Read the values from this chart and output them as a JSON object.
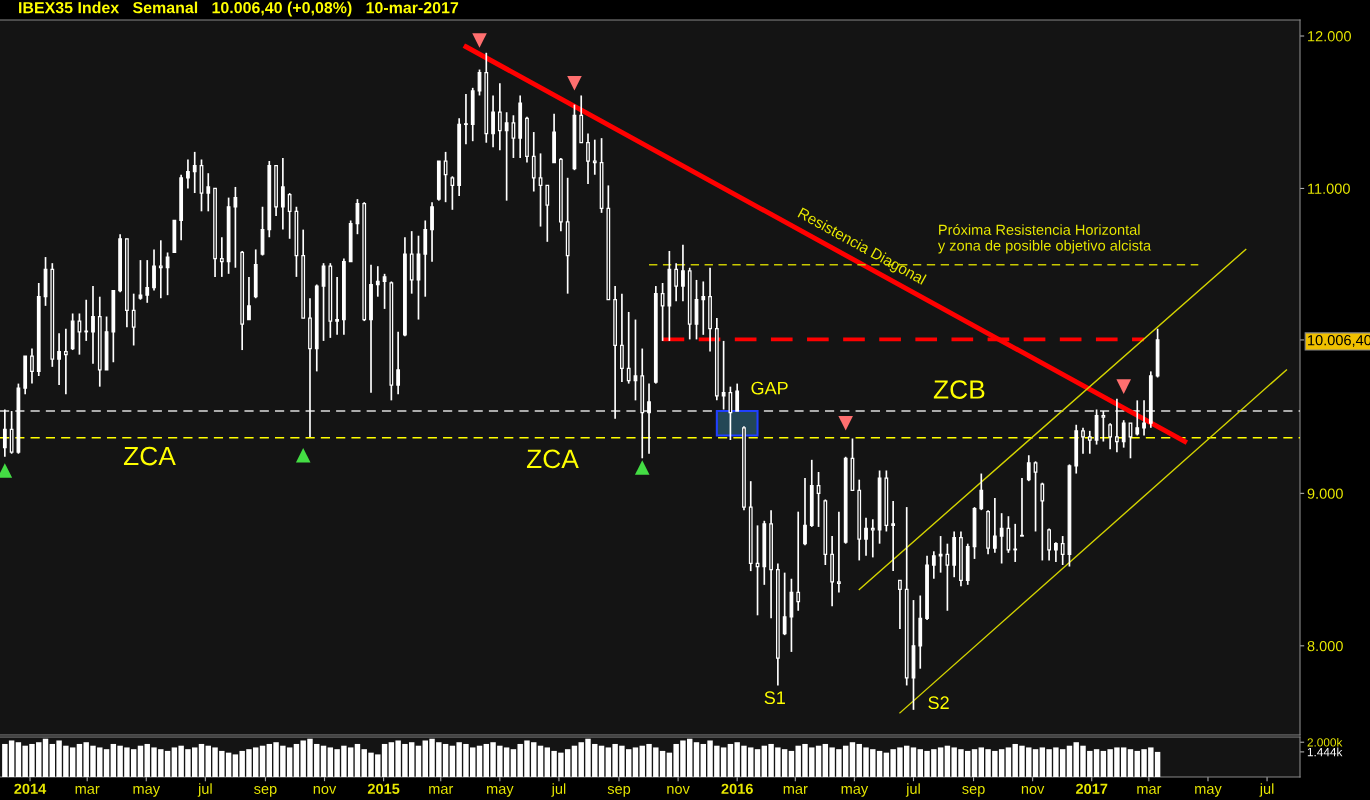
{
  "chart_data": [
    {
      "type": "candlestick",
      "title": "IBEX35 Index   Semanal   10.006,40 (+0,08%)   10-mar-2017",
      "color": "#ffffff",
      "x": [
        "2013-12-06",
        "2013-12-13",
        "2013-12-20",
        "2013-12-27",
        "2014-01-03",
        "2014-01-10",
        "2014-01-17",
        "2014-01-24",
        "2014-01-31",
        "2014-02-07",
        "2014-02-14",
        "2014-02-21",
        "2014-02-28",
        "2014-03-07",
        "2014-03-14",
        "2014-03-21",
        "2014-03-28",
        "2014-04-04",
        "2014-04-11",
        "2014-04-18",
        "2014-04-25",
        "2014-05-02",
        "2014-05-09",
        "2014-05-16",
        "2014-05-23",
        "2014-05-30",
        "2014-06-06",
        "2014-06-13",
        "2014-06-20",
        "2014-06-27",
        "2014-07-04",
        "2014-07-11",
        "2014-07-18",
        "2014-07-25",
        "2014-08-01",
        "2014-08-08",
        "2014-08-15",
        "2014-08-22",
        "2014-08-29",
        "2014-09-05",
        "2014-09-12",
        "2014-09-19",
        "2014-09-26",
        "2014-10-03",
        "2014-10-10",
        "2014-10-17",
        "2014-10-24",
        "2014-10-31",
        "2014-11-07",
        "2014-11-14",
        "2014-11-21",
        "2014-11-28",
        "2014-12-05",
        "2014-12-12",
        "2014-12-19",
        "2014-12-26",
        "2015-01-02",
        "2015-01-09",
        "2015-01-16",
        "2015-01-23",
        "2015-01-30",
        "2015-02-06",
        "2015-02-13",
        "2015-02-20",
        "2015-02-27",
        "2015-03-06",
        "2015-03-13",
        "2015-03-20",
        "2015-03-27",
        "2015-04-03",
        "2015-04-10",
        "2015-04-17",
        "2015-04-24",
        "2015-05-01",
        "2015-05-08",
        "2015-05-15",
        "2015-05-22",
        "2015-05-29",
        "2015-06-05",
        "2015-06-12",
        "2015-06-19",
        "2015-06-26",
        "2015-07-03",
        "2015-07-10",
        "2015-07-17",
        "2015-07-24",
        "2015-07-31",
        "2015-08-07",
        "2015-08-14",
        "2015-08-21",
        "2015-08-28",
        "2015-09-04",
        "2015-09-11",
        "2015-09-18",
        "2015-09-25",
        "2015-10-02",
        "2015-10-09",
        "2015-10-16",
        "2015-10-23",
        "2015-10-30",
        "2015-11-06",
        "2015-11-13",
        "2015-11-20",
        "2015-11-27",
        "2015-12-04",
        "2015-12-11",
        "2015-12-18",
        "2015-12-25",
        "2016-01-01",
        "2016-01-08",
        "2016-01-15",
        "2016-01-22",
        "2016-01-29",
        "2016-02-05",
        "2016-02-12",
        "2016-02-19",
        "2016-02-26",
        "2016-03-04",
        "2016-03-11",
        "2016-03-18",
        "2016-03-25",
        "2016-04-01",
        "2016-04-08",
        "2016-04-15",
        "2016-04-22",
        "2016-04-29",
        "2016-05-06",
        "2016-05-13",
        "2016-05-20",
        "2016-05-27",
        "2016-06-03",
        "2016-06-10",
        "2016-06-17",
        "2016-06-24",
        "2016-07-01",
        "2016-07-08",
        "2016-07-15",
        "2016-07-22",
        "2016-07-29",
        "2016-08-05",
        "2016-08-12",
        "2016-08-19",
        "2016-08-26",
        "2016-09-02",
        "2016-09-09",
        "2016-09-16",
        "2016-09-23",
        "2016-09-30",
        "2016-10-07",
        "2016-10-14",
        "2016-10-21",
        "2016-10-28",
        "2016-11-04",
        "2016-11-11",
        "2016-11-18",
        "2016-11-25",
        "2016-12-02",
        "2016-12-09",
        "2016-12-16",
        "2016-12-23",
        "2016-12-30",
        "2017-01-06",
        "2017-01-13",
        "2017-01-20",
        "2017-01-27",
        "2017-02-03",
        "2017-02-10",
        "2017-02-17",
        "2017-02-24",
        "2017-03-03",
        "2017-03-10"
      ],
      "ohlc": [
        [
          9300,
          9550,
          9240,
          9420
        ],
        [
          9420,
          9540,
          9260,
          9270
        ],
        [
          9270,
          9720,
          9260,
          9690
        ],
        [
          9690,
          9900,
          9650,
          9900
        ],
        [
          9900,
          9950,
          9720,
          9800
        ],
        [
          9800,
          10380,
          9770,
          10290
        ],
        [
          10290,
          10550,
          10230,
          10470
        ],
        [
          10470,
          10510,
          9830,
          9880
        ],
        [
          9880,
          10050,
          9710,
          9930
        ],
        [
          9930,
          10080,
          9650,
          9910
        ],
        [
          9950,
          10180,
          9940,
          10130
        ],
        [
          10130,
          10180,
          9910,
          10060
        ],
        [
          10060,
          10270,
          10000,
          10060
        ],
        [
          10060,
          10360,
          9850,
          10160
        ],
        [
          10160,
          10290,
          9700,
          9810
        ],
        [
          9810,
          10160,
          9810,
          10060
        ],
        [
          10060,
          10330,
          9860,
          10330
        ],
        [
          10330,
          10700,
          10320,
          10670
        ],
        [
          10670,
          10670,
          10090,
          10200
        ],
        [
          10200,
          10310,
          9970,
          10090
        ],
        [
          10280,
          10530,
          10270,
          10300
        ],
        [
          10300,
          10530,
          10250,
          10350
        ],
        [
          10350,
          10600,
          10330,
          10490
        ],
        [
          10490,
          10660,
          10280,
          10480
        ],
        [
          10480,
          10580,
          10300,
          10550
        ],
        [
          10580,
          10790,
          10580,
          10790
        ],
        [
          10790,
          11090,
          10660,
          11070
        ],
        [
          11070,
          11190,
          11000,
          11110
        ],
        [
          11110,
          11240,
          10970,
          11150
        ],
        [
          11150,
          11190,
          10850,
          10970
        ],
        [
          10970,
          11100,
          10850,
          11010
        ],
        [
          11000,
          11000,
          10420,
          10540
        ],
        [
          10540,
          10680,
          10420,
          10520
        ],
        [
          10520,
          10940,
          10440,
          10880
        ],
        [
          10880,
          11010,
          10480,
          10940
        ],
        [
          10580,
          10590,
          9940,
          10110
        ],
        [
          10140,
          10420,
          10140,
          10230
        ],
        [
          10290,
          10600,
          10280,
          10500
        ],
        [
          10570,
          10880,
          10560,
          10730
        ],
        [
          10730,
          11180,
          10680,
          11150
        ],
        [
          11150,
          11150,
          10820,
          10880
        ],
        [
          10880,
          11200,
          10730,
          11010
        ],
        [
          10960,
          10970,
          10670,
          10850
        ],
        [
          10850,
          10880,
          10420,
          10560
        ],
        [
          10560,
          10730,
          10150,
          10150
        ],
        [
          10150,
          10280,
          9370,
          9950
        ],
        [
          9950,
          10370,
          9800,
          10360
        ],
        [
          10360,
          10510,
          10000,
          10490
        ],
        [
          10490,
          10510,
          10020,
          10130
        ],
        [
          10130,
          10420,
          10040,
          10140
        ],
        [
          10140,
          10540,
          10040,
          10520
        ],
        [
          10520,
          10790,
          10520,
          10770
        ],
        [
          10770,
          10930,
          10700,
          10900
        ],
        [
          10900,
          10910,
          10130,
          10140
        ],
        [
          10140,
          10500,
          9660,
          10370
        ],
        [
          10370,
          10490,
          10290,
          10390
        ],
        [
          10390,
          10440,
          10210,
          10420
        ],
        [
          10380,
          10390,
          9610,
          9710
        ],
        [
          9710,
          10060,
          9650,
          9810
        ],
        [
          10040,
          10680,
          10030,
          10570
        ],
        [
          10570,
          10720,
          10310,
          10400
        ],
        [
          10400,
          10690,
          10140,
          10570
        ],
        [
          10570,
          10790,
          10290,
          10730
        ],
        [
          10730,
          10910,
          10520,
          10880
        ],
        [
          10930,
          11180,
          10920,
          11180
        ],
        [
          11180,
          11240,
          10910,
          11090
        ],
        [
          11070,
          11080,
          10860,
          11020
        ],
        [
          11020,
          11460,
          10950,
          11420
        ],
        [
          11420,
          11620,
          11290,
          11420
        ],
        [
          11420,
          11660,
          11310,
          11640
        ],
        [
          11640,
          11780,
          11610,
          11760
        ],
        [
          11760,
          11890,
          11300,
          11360
        ],
        [
          11360,
          11610,
          11270,
          11500
        ],
        [
          11500,
          11690,
          11250,
          11380
        ],
        [
          11380,
          11500,
          10920,
          11430
        ],
        [
          11430,
          11480,
          11200,
          11330
        ],
        [
          11330,
          11610,
          11200,
          11560
        ],
        [
          11460,
          11470,
          11170,
          11210
        ],
        [
          11210,
          11370,
          10980,
          11070
        ],
        [
          11070,
          11230,
          10750,
          11020
        ],
        [
          11020,
          11020,
          10650,
          10890
        ],
        [
          11170,
          11490,
          11170,
          11370
        ],
        [
          11190,
          11200,
          10720,
          10780
        ],
        [
          10780,
          11070,
          10310,
          10560
        ],
        [
          11130,
          11550,
          11120,
          11480
        ],
        [
          11480,
          11610,
          11300,
          11300
        ],
        [
          11300,
          11360,
          11030,
          11180
        ],
        [
          11180,
          11320,
          11090,
          11170
        ],
        [
          11170,
          11330,
          10840,
          10870
        ],
        [
          10870,
          11020,
          10270,
          10270
        ],
        [
          10270,
          10360,
          9490,
          9970
        ],
        [
          9970,
          10310,
          9730,
          9820
        ],
        [
          9820,
          10190,
          9720,
          9740
        ],
        [
          9740,
          10140,
          9610,
          9770
        ],
        [
          9770,
          9950,
          9230,
          9530
        ],
        [
          9530,
          9720,
          9260,
          9600
        ],
        [
          9730,
          10360,
          9720,
          10310
        ],
        [
          10310,
          10380,
          10000,
          10230
        ],
        [
          10230,
          10590,
          10000,
          10470
        ],
        [
          10470,
          10510,
          10260,
          10360
        ],
        [
          10360,
          10630,
          10260,
          10460
        ],
        [
          10460,
          10480,
          10010,
          10110
        ],
        [
          10110,
          10400,
          10010,
          10270
        ],
        [
          10270,
          10390,
          10040,
          10290
        ],
        [
          10290,
          10480,
          9930,
          10080
        ],
        [
          10080,
          10150,
          9610,
          9640
        ],
        [
          9640,
          10000,
          9550,
          9660
        ],
        [
          9660,
          9700,
          9350,
          9530
        ],
        [
          9540,
          9720,
          9540,
          9670
        ],
        [
          9430,
          9440,
          8890,
          8910
        ],
        [
          8910,
          9080,
          8490,
          8540
        ],
        [
          8540,
          8790,
          8200,
          8520
        ],
        [
          8520,
          8820,
          8400,
          8800
        ],
        [
          8800,
          8890,
          8180,
          8500
        ],
        [
          8500,
          8540,
          7740,
          7920
        ],
        [
          8080,
          8480,
          8070,
          8190
        ],
        [
          8190,
          8440,
          7960,
          8350
        ],
        [
          8350,
          8880,
          8230,
          8290
        ],
        [
          8670,
          9100,
          8660,
          8790
        ],
        [
          8790,
          9220,
          8780,
          9050
        ],
        [
          9050,
          9140,
          8780,
          9000
        ],
        [
          8950,
          8960,
          8530,
          8600
        ],
        [
          8600,
          8720,
          8260,
          8420
        ],
        [
          8420,
          8880,
          8350,
          8410
        ],
        [
          8680,
          9240,
          8670,
          9230
        ],
        [
          9230,
          9360,
          9020,
          9020
        ],
        [
          9020,
          9090,
          8560,
          8700
        ],
        [
          8700,
          8840,
          8590,
          8770
        ],
        [
          8770,
          8830,
          8580,
          8760
        ],
        [
          8760,
          9150,
          8670,
          9100
        ],
        [
          9100,
          9150,
          8750,
          8790
        ],
        [
          8790,
          8950,
          8490,
          8800
        ],
        [
          8430,
          8430,
          8110,
          8370
        ],
        [
          8370,
          8910,
          7740,
          7790
        ],
        [
          7790,
          8300,
          7580,
          8000
        ],
        [
          8000,
          8330,
          7850,
          8180
        ],
        [
          8180,
          8590,
          8170,
          8530
        ],
        [
          8530,
          8620,
          8440,
          8590
        ],
        [
          8590,
          8720,
          8480,
          8600
        ],
        [
          8600,
          8670,
          8230,
          8530
        ],
        [
          8530,
          8750,
          8450,
          8710
        ],
        [
          8710,
          8750,
          8390,
          8430
        ],
        [
          8430,
          8670,
          8400,
          8650
        ],
        [
          8650,
          8910,
          8570,
          8900
        ],
        [
          8900,
          9130,
          8890,
          9020
        ],
        [
          8880,
          8890,
          8600,
          8640
        ],
        [
          8640,
          8970,
          8610,
          8720
        ],
        [
          8720,
          8870,
          8540,
          8770
        ],
        [
          8770,
          8850,
          8610,
          8630
        ],
        [
          8630,
          8800,
          8550,
          8630
        ],
        [
          8720,
          9100,
          8720,
          8720
        ],
        [
          9090,
          9250,
          9080,
          9200
        ],
        [
          9200,
          9210,
          8750,
          9140
        ],
        [
          9060,
          9070,
          8560,
          8950
        ],
        [
          8760,
          8770,
          8560,
          8630
        ],
        [
          8630,
          8680,
          8550,
          8670
        ],
        [
          8670,
          8720,
          8530,
          8600
        ],
        [
          8600,
          9190,
          8520,
          9180
        ],
        [
          9180,
          9450,
          9130,
          9410
        ],
        [
          9410,
          9430,
          9260,
          9370
        ],
        [
          9370,
          9410,
          9260,
          9350
        ],
        [
          9350,
          9550,
          9320,
          9510
        ],
        [
          9510,
          9540,
          9340,
          9500
        ],
        [
          9450,
          9460,
          9290,
          9370
        ],
        [
          9370,
          9620,
          9270,
          9340
        ],
        [
          9340,
          9480,
          9300,
          9460
        ],
        [
          9460,
          9460,
          9230,
          9370
        ],
        [
          9390,
          9610,
          9380,
          9430
        ],
        [
          9430,
          9610,
          9380,
          9460
        ],
        [
          9460,
          9800,
          9430,
          9770
        ],
        [
          9770,
          10080,
          9760,
          10006.4
        ]
      ],
      "series": [
        {
          "type": "line",
          "name": "Resistencia Diagonal",
          "x": [
            "2015-03-27",
            "2017-04-07"
          ],
          "values": [
            11930,
            9340
          ],
          "color": "#ff0000",
          "line_style": "solid"
        },
        {
          "type": "line",
          "x": [
            "2015-10-16",
            "2017-02-24"
          ],
          "values": [
            10010,
            10010
          ],
          "color": "#ff0000",
          "line_style": "dashed"
        },
        {
          "type": "line",
          "name": "Próxima Resistencia Horizontal\ny zona de posible objetivo alcista",
          "x": [
            "2015-10-02",
            "2017-04-21"
          ],
          "values": [
            10500,
            10500
          ],
          "color": "#c8c800",
          "line_style": "dashed"
        },
        {
          "type": "line",
          "x": [
            "2016-05-06",
            "2017-06-09"
          ],
          "values": [
            8370,
            10600
          ],
          "color": "#d4d400",
          "line_style": "solid"
        },
        {
          "type": "line",
          "x": [
            "2016-06-17",
            "2017-07-21"
          ],
          "values": [
            7560,
            9810
          ],
          "color": "#d4d400",
          "line_style": "solid"
        },
        {
          "type": "bar",
          "x": [
            "2016-01-01"
          ],
          "base": [
            9380
          ],
          "values": [
            160
          ],
          "color": "#234756"
        },
        {
          "type": "scatter",
          "x": [
            "2013-12-06",
            "2014-10-10",
            "2015-09-25"
          ],
          "values": [
            9150,
            9250,
            9170
          ],
          "color": "#44dd44",
          "marker": "triangle"
        },
        {
          "type": "scatter",
          "x": [
            "2015-04-10",
            "2015-07-17",
            "2016-04-22",
            "2017-02-03"
          ],
          "values": [
            11970,
            11690,
            9460,
            9700
          ],
          "color": "#ff6f6f",
          "marker": "triangle_down"
        }
      ],
      "ref_lines": [
        {
          "axis": "y",
          "value": 9540,
          "color": "#dddddd",
          "line_style": "dashed"
        },
        {
          "axis": "y",
          "value": 9365,
          "color": "#ffff00",
          "line_style": "dashed"
        }
      ],
      "annotations": [
        "ZCA",
        "ZCA",
        "GAP",
        "ZCB",
        "S1",
        "S2"
      ],
      "xlim": [
        "2013-12-01",
        "2017-08-04"
      ],
      "ylim": [
        7415,
        12105
      ],
      "yticks": [
        {
          "value": 8000,
          "label": "8.000"
        },
        {
          "value": 9000,
          "label": "9.000"
        },
        {
          "value": 10006.4,
          "label": "10.006,40"
        },
        {
          "value": 11000,
          "label": "11.000"
        },
        {
          "value": 12000,
          "label": "12.000"
        }
      ],
      "tick_labels": "y",
      "grid": false,
      "legend": false
    },
    {
      "type": "bar",
      "color": "#ffffff",
      "x": [
        "2013-12-06",
        "2013-12-13",
        "2013-12-20",
        "2013-12-27",
        "2014-01-03",
        "2014-01-10",
        "2014-01-17",
        "2014-01-24",
        "2014-01-31",
        "2014-02-07",
        "2014-02-14",
        "2014-02-21",
        "2014-02-28",
        "2014-03-07",
        "2014-03-14",
        "2014-03-21",
        "2014-03-28",
        "2014-04-04",
        "2014-04-11",
        "2014-04-18",
        "2014-04-25",
        "2014-05-02",
        "2014-05-09",
        "2014-05-16",
        "2014-05-23",
        "2014-05-30",
        "2014-06-06",
        "2014-06-13",
        "2014-06-20",
        "2014-06-27",
        "2014-07-04",
        "2014-07-11",
        "2014-07-18",
        "2014-07-25",
        "2014-08-01",
        "2014-08-08",
        "2014-08-15",
        "2014-08-22",
        "2014-08-29",
        "2014-09-05",
        "2014-09-12",
        "2014-09-19",
        "2014-09-26",
        "2014-10-03",
        "2014-10-10",
        "2014-10-17",
        "2014-10-24",
        "2014-10-31",
        "2014-11-07",
        "2014-11-14",
        "2014-11-21",
        "2014-11-28",
        "2014-12-05",
        "2014-12-12",
        "2014-12-19",
        "2014-12-26",
        "2015-01-02",
        "2015-01-09",
        "2015-01-16",
        "2015-01-23",
        "2015-01-30",
        "2015-02-06",
        "2015-02-13",
        "2015-02-20",
        "2015-02-27",
        "2015-03-06",
        "2015-03-13",
        "2015-03-20",
        "2015-03-27",
        "2015-04-03",
        "2015-04-10",
        "2015-04-17",
        "2015-04-24",
        "2015-05-01",
        "2015-05-08",
        "2015-05-15",
        "2015-05-22",
        "2015-05-29",
        "2015-06-05",
        "2015-06-12",
        "2015-06-19",
        "2015-06-26",
        "2015-07-03",
        "2015-07-10",
        "2015-07-17",
        "2015-07-24",
        "2015-07-31",
        "2015-08-07",
        "2015-08-14",
        "2015-08-21",
        "2015-08-28",
        "2015-09-04",
        "2015-09-11",
        "2015-09-18",
        "2015-09-25",
        "2015-10-02",
        "2015-10-09",
        "2015-10-16",
        "2015-10-23",
        "2015-10-30",
        "2015-11-06",
        "2015-11-13",
        "2015-11-20",
        "2015-11-27",
        "2015-12-04",
        "2015-12-11",
        "2015-12-18",
        "2015-12-25",
        "2016-01-01",
        "2016-01-08",
        "2016-01-15",
        "2016-01-22",
        "2016-01-29",
        "2016-02-05",
        "2016-02-12",
        "2016-02-19",
        "2016-02-26",
        "2016-03-04",
        "2016-03-11",
        "2016-03-18",
        "2016-03-25",
        "2016-04-01",
        "2016-04-08",
        "2016-04-15",
        "2016-04-22",
        "2016-04-29",
        "2016-05-06",
        "2016-05-13",
        "2016-05-20",
        "2016-05-27",
        "2016-06-03",
        "2016-06-10",
        "2016-06-17",
        "2016-06-24",
        "2016-07-01",
        "2016-07-08",
        "2016-07-15",
        "2016-07-22",
        "2016-07-29",
        "2016-08-05",
        "2016-08-12",
        "2016-08-19",
        "2016-08-26",
        "2016-09-02",
        "2016-09-09",
        "2016-09-16",
        "2016-09-23",
        "2016-09-30",
        "2016-10-07",
        "2016-10-14",
        "2016-10-21",
        "2016-10-28",
        "2016-11-04",
        "2016-11-11",
        "2016-11-18",
        "2016-11-25",
        "2016-12-02",
        "2016-12-09",
        "2016-12-16",
        "2016-12-23",
        "2016-12-30",
        "2017-01-06",
        "2017-01-13",
        "2017-01-20",
        "2017-01-27",
        "2017-02-03",
        "2017-02-10",
        "2017-02-17",
        "2017-02-24",
        "2017-03-03",
        "2017-03-10"
      ],
      "values": [
        1900,
        2100,
        2000,
        1800,
        1900,
        2000,
        2200,
        1900,
        2100,
        1800,
        1700,
        1900,
        2000,
        1800,
        1700,
        1600,
        1900,
        1800,
        1700,
        1600,
        1800,
        1900,
        1700,
        1600,
        1500,
        1700,
        1800,
        1600,
        1700,
        1900,
        1800,
        1700,
        1500,
        1400,
        1300,
        1500,
        1600,
        1700,
        1800,
        1900,
        2000,
        1800,
        1700,
        1900,
        2100,
        2200,
        1900,
        1800,
        1700,
        1600,
        1800,
        1700,
        1900,
        1600,
        1400,
        1300,
        1900,
        2000,
        2100,
        1900,
        2000,
        1800,
        2100,
        2200,
        2000,
        1900,
        1800,
        2000,
        1900,
        1700,
        1800,
        1900,
        2000,
        1800,
        1700,
        1600,
        1900,
        2100,
        2000,
        1800,
        1700,
        1500,
        1400,
        1600,
        1800,
        2000,
        2200,
        1900,
        1800,
        1700,
        1900,
        1800,
        1600,
        1700,
        1800,
        1900,
        1700,
        1500,
        1400,
        1900,
        2100,
        2200,
        2000,
        1900,
        2100,
        1800,
        1700,
        1900,
        2000,
        1800,
        1700,
        1600,
        1800,
        1900,
        1700,
        1600,
        1500,
        1800,
        1900,
        1700,
        1800,
        1900,
        1700,
        1600,
        1800,
        2000,
        1900,
        1700,
        1600,
        1500,
        1400,
        1600,
        1700,
        1800,
        1700,
        1600,
        1500,
        1600,
        1700,
        1800,
        1700,
        1600,
        1500,
        1600,
        1700,
        1600,
        1500,
        1600,
        1700,
        1900,
        1800,
        1700,
        1600,
        1700,
        1600,
        1700,
        1600,
        1800,
        2000,
        1800,
        1500,
        1600,
        1500,
        1600,
        1700,
        1700,
        1600,
        1500,
        1600,
        1700,
        1444
      ],
      "xlim": [
        "2013-12-01",
        "2017-08-04"
      ],
      "xticks": [
        {
          "value": "2014-01-01",
          "label": "2014"
        },
        {
          "value": "2014-03-01",
          "label": "mar"
        },
        {
          "value": "2014-05-01",
          "label": "may"
        },
        {
          "value": "2014-07-01",
          "label": "jul"
        },
        {
          "value": "2014-09-01",
          "label": "sep"
        },
        {
          "value": "2014-11-01",
          "label": "nov"
        },
        {
          "value": "2015-01-01",
          "label": "2015"
        },
        {
          "value": "2015-03-01",
          "label": "mar"
        },
        {
          "value": "2015-05-01",
          "label": "may"
        },
        {
          "value": "2015-07-01",
          "label": "jul"
        },
        {
          "value": "2015-09-01",
          "label": "sep"
        },
        {
          "value": "2015-11-01",
          "label": "nov"
        },
        {
          "value": "2016-01-01",
          "label": "2016"
        },
        {
          "value": "2016-03-01",
          "label": "mar"
        },
        {
          "value": "2016-05-01",
          "label": "may"
        },
        {
          "value": "2016-07-01",
          "label": "jul"
        },
        {
          "value": "2016-09-01",
          "label": "sep"
        },
        {
          "value": "2016-11-01",
          "label": "nov"
        },
        {
          "value": "2017-01-01",
          "label": "2017"
        },
        {
          "value": "2017-03-01",
          "label": "mar"
        },
        {
          "value": "2017-05-01",
          "label": "may"
        },
        {
          "value": "2017-07-01",
          "label": "jul"
        }
      ],
      "ylim": [
        0,
        2300
      ],
      "yticks": [
        {
          "value": 2000,
          "label": "2.000k"
        },
        {
          "value": 1444,
          "label": "1.444k"
        }
      ],
      "grid": false,
      "legend": false
    }
  ]
}
